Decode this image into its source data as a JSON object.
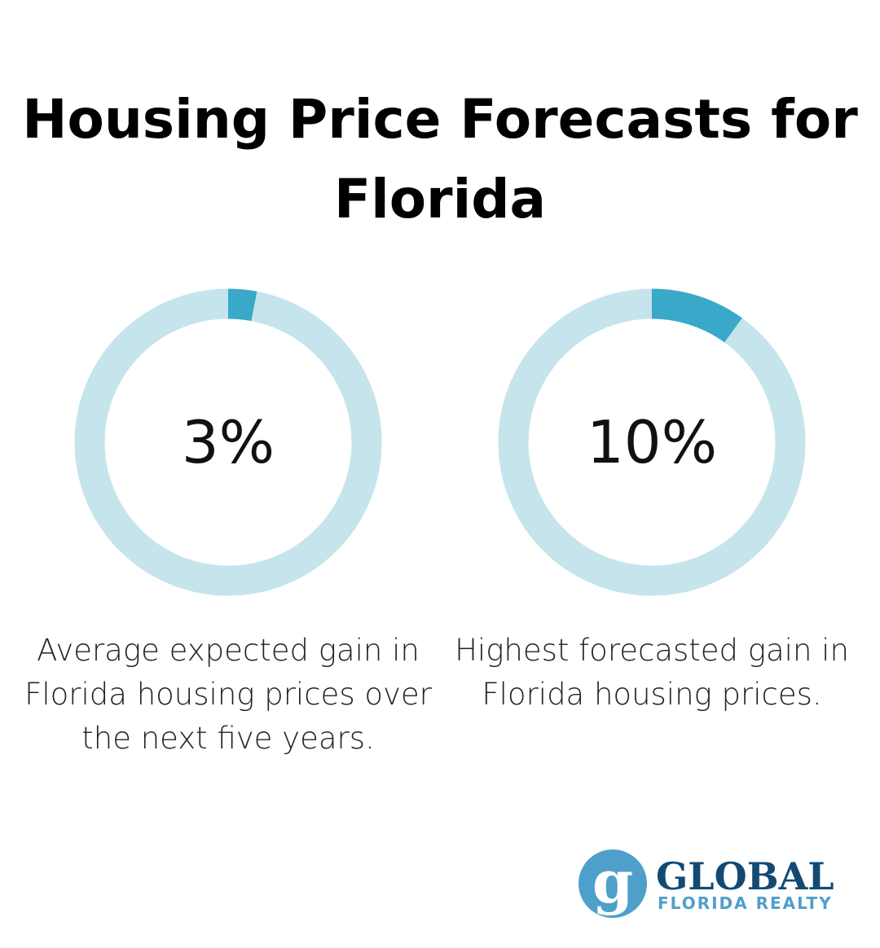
{
  "title": "Housing Price Forecasts for Florida",
  "chart_data": [
    {
      "type": "pie",
      "variant": "donut",
      "value_percent": 3,
      "label": "3%",
      "caption": "Average expected gain in Florida housing prices over the next five years.",
      "colors": {
        "fill": "#3aa8c8",
        "track": "#c5e4ec"
      }
    },
    {
      "type": "pie",
      "variant": "donut",
      "value_percent": 10,
      "label": "10%",
      "caption": "Highest forecasted gain in Florida housing prices.",
      "colors": {
        "fill": "#3aa8c8",
        "track": "#c5e4ec"
      }
    }
  ],
  "logo": {
    "name": "GLOBAL",
    "sub": "FLORIDA REALTY",
    "colors": {
      "dark": "#134a73",
      "light": "#4f9fcb"
    }
  }
}
